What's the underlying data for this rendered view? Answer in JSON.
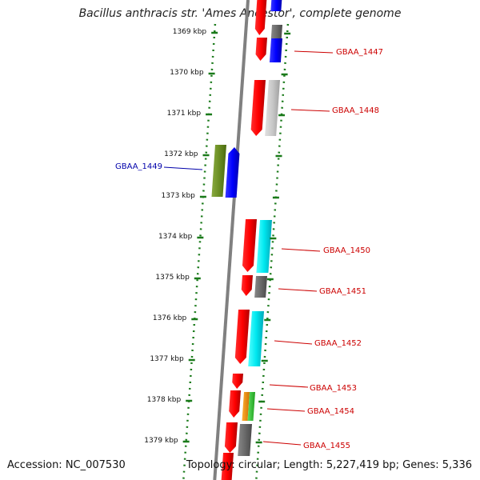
{
  "title": "Bacillus anthracis str. 'Ames Ancestor', complete genome",
  "accession": "Accession: NC_007530",
  "topology": "Topology: circular; Length: 5,227,419 bp; Genes: 5,336",
  "colors": {
    "backbone": "#808080",
    "dotted_track": "#1a7a1a",
    "label_plus": "#cc0000",
    "label_minus": "#0000aa"
  },
  "ticks": [
    "1369 kbp",
    "1370 kbp",
    "1371 kbp",
    "1372 kbp",
    "1373 kbp",
    "1374 kbp",
    "1375 kbp",
    "1376 kbp",
    "1377 kbp",
    "1378 kbp",
    "1379 kbp"
  ],
  "labels": [
    {
      "text": "GBAA_1447",
      "strand": "plus"
    },
    {
      "text": "GBAA_1448",
      "strand": "plus"
    },
    {
      "text": "GBAA_1449",
      "strand": "minus"
    },
    {
      "text": "GBAA_1450",
      "strand": "plus"
    },
    {
      "text": "GBAA_1451",
      "strand": "plus"
    },
    {
      "text": "GBAA_1452",
      "strand": "plus"
    },
    {
      "text": "GBAA_1453",
      "strand": "plus"
    },
    {
      "text": "GBAA_1454",
      "strand": "plus"
    },
    {
      "text": "GBAA_1455",
      "strand": "plus"
    }
  ]
}
